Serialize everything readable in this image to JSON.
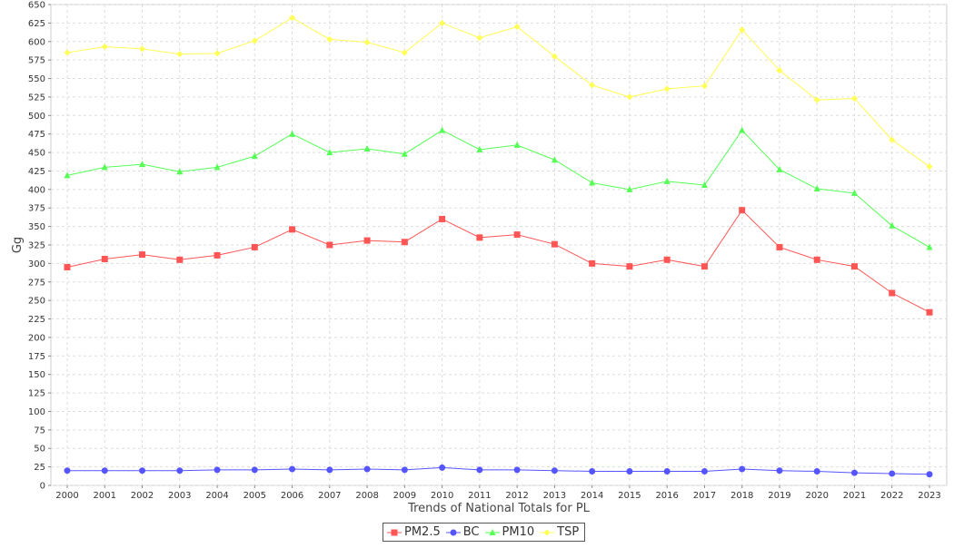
{
  "chart_data": {
    "type": "line",
    "title": "",
    "xlabel": "Trends of National Totals for PL",
    "ylabel": "Gg",
    "ylim": [
      0,
      650
    ],
    "yticks": [
      0,
      25,
      50,
      75,
      100,
      125,
      150,
      175,
      200,
      225,
      250,
      275,
      300,
      325,
      350,
      375,
      400,
      425,
      450,
      475,
      500,
      525,
      550,
      575,
      600,
      625,
      650
    ],
    "grid": true,
    "legend_position": "bottom-center",
    "x": [
      "2000",
      "2001",
      "2002",
      "2003",
      "2004",
      "2005",
      "2006",
      "2007",
      "2008",
      "2009",
      "2010",
      "2011",
      "2012",
      "2013",
      "2014",
      "2015",
      "2016",
      "2017",
      "2018",
      "2019",
      "2020",
      "2021",
      "2022",
      "2023"
    ],
    "series": [
      {
        "name": "PM2.5",
        "color": "#ff5555",
        "marker": "square",
        "values": [
          295,
          306,
          312,
          305,
          311,
          322,
          346,
          325,
          331,
          329,
          360,
          335,
          339,
          326,
          300,
          296,
          305,
          296,
          372,
          322,
          305,
          296,
          260,
          234
        ]
      },
      {
        "name": "BC",
        "color": "#5555ff",
        "marker": "circle",
        "values": [
          20,
          20,
          20,
          20,
          21,
          21,
          22,
          21,
          22,
          21,
          24,
          21,
          21,
          20,
          19,
          19,
          19,
          19,
          22,
          20,
          19,
          17,
          16,
          15
        ]
      },
      {
        "name": "PM10",
        "color": "#55ff55",
        "marker": "triangle",
        "values": [
          419,
          430,
          434,
          424,
          430,
          445,
          475,
          450,
          455,
          448,
          480,
          454,
          460,
          440,
          409,
          400,
          411,
          406,
          480,
          427,
          401,
          395,
          351,
          322
        ]
      },
      {
        "name": "TSP",
        "color": "#ffff55",
        "marker": "diamond",
        "values": [
          585,
          593,
          590,
          583,
          584,
          601,
          632,
          603,
          599,
          585,
          625,
          605,
          620,
          580,
          541,
          525,
          536,
          540,
          616,
          561,
          521,
          523,
          467,
          431
        ]
      }
    ]
  }
}
